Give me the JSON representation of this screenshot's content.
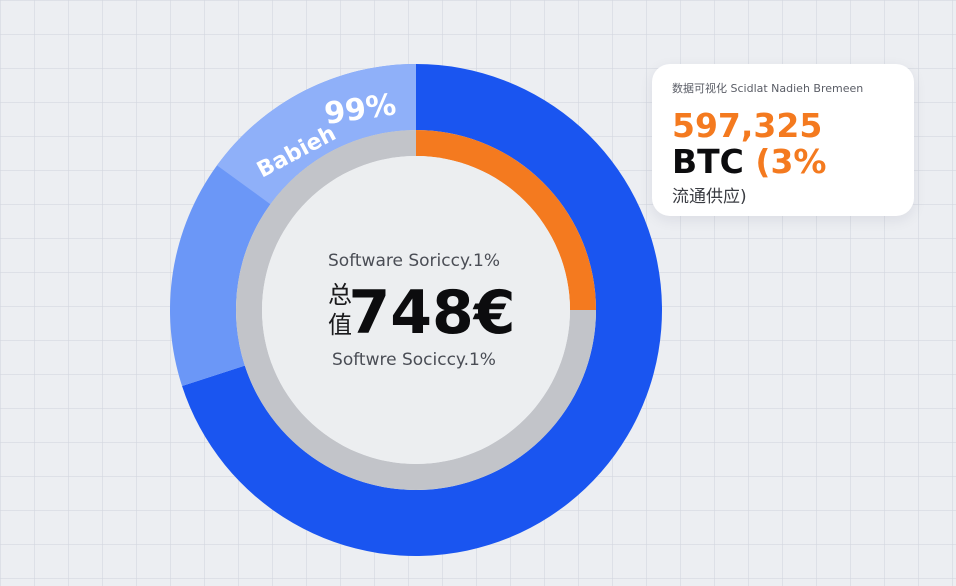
{
  "chart_data": {
    "type": "pie",
    "style": "donut",
    "outer_ring": {
      "slices": [
        {
          "label": "",
          "fraction": 0.7,
          "color": "#1a55f0"
        },
        {
          "label": "",
          "fraction": 0.3,
          "color": "#6b97f7"
        }
      ],
      "highlight_color": "#8fb0f9",
      "annotation_label": "Babieh",
      "annotation_value": "99%"
    },
    "inner_ring": {
      "slices": [
        {
          "label": "",
          "fraction": 0.25,
          "color": "#f47a1f"
        },
        {
          "label": "",
          "fraction": 0.75,
          "color": "#c2c4c9"
        }
      ]
    },
    "center": {
      "top_label": "Software Soricсy.1%",
      "cjk_line1": "总",
      "cjk_line2": "值",
      "value": "748€",
      "bottom_label": "Softwre Socicсy.1%"
    }
  },
  "card": {
    "title": "数据可视化 Scidlat Nadieh Bremeen",
    "value": "597,325",
    "unit": "BTC",
    "percent": "(3%",
    "subtitle": "流通供应)"
  },
  "colors": {
    "background": "#eceef2",
    "primary_blue": "#1a55f0",
    "light_blue": "#6b97f7",
    "orange": "#f47a1f",
    "grey_ring": "#c2c4c9"
  }
}
